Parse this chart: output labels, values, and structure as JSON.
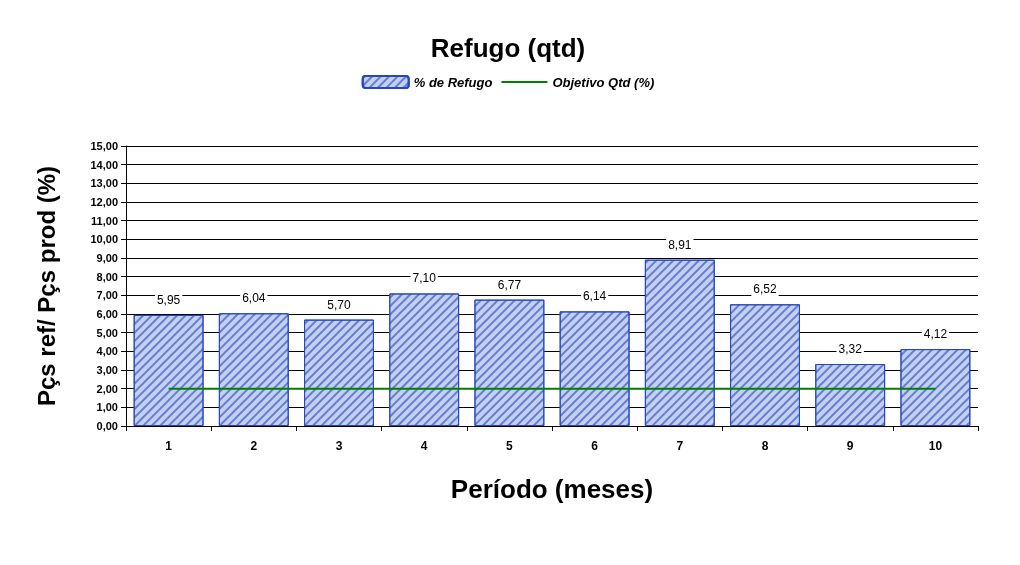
{
  "chart_data": {
    "type": "bar",
    "title": "Refugo (qtd)",
    "xlabel": "Período (meses)",
    "ylabel": "Pçs ref/ Pçs prod (%)",
    "categories": [
      "1",
      "2",
      "3",
      "4",
      "5",
      "6",
      "7",
      "8",
      "9",
      "10"
    ],
    "series": [
      {
        "name": "% de Refugo",
        "color": "#c3d0f0",
        "values": [
          5.95,
          6.04,
          5.7,
          7.1,
          6.77,
          6.14,
          8.91,
          6.52,
          3.32,
          4.12
        ],
        "value_labels": [
          "5,95",
          "6,04",
          "5,70",
          "7,10",
          "6,77",
          "6,14",
          "8,91",
          "6,52",
          "3,32",
          "4,12"
        ]
      },
      {
        "name": "Objetivo Qtd (%)",
        "type": "line",
        "color": "#008000",
        "values": [
          2,
          2,
          2,
          2,
          2,
          2,
          2,
          2,
          2,
          2
        ]
      }
    ],
    "ylim": [
      0,
      15
    ],
    "yticks": [
      {
        "value": 0,
        "label": "0,00"
      },
      {
        "value": 1,
        "label": "1,00"
      },
      {
        "value": 2,
        "label": "2,00"
      },
      {
        "value": 3,
        "label": "3,00"
      },
      {
        "value": 4,
        "label": "4,00"
      },
      {
        "value": 5,
        "label": "5,00"
      },
      {
        "value": 6,
        "label": "6,00"
      },
      {
        "value": 7,
        "label": "7,00"
      },
      {
        "value": 8,
        "label": "8,00"
      },
      {
        "value": 9,
        "label": "9,00"
      },
      {
        "value": 10,
        "label": "10,00"
      },
      {
        "value": 11,
        "label": "11,00"
      },
      {
        "value": 12,
        "label": "12,00"
      },
      {
        "value": 13,
        "label": "13,00"
      },
      {
        "value": 14,
        "label": "14,00"
      },
      {
        "value": 15,
        "label": "15,00"
      }
    ],
    "grid": "y",
    "legend": "top",
    "marker": "none",
    "line_style": "solid"
  }
}
